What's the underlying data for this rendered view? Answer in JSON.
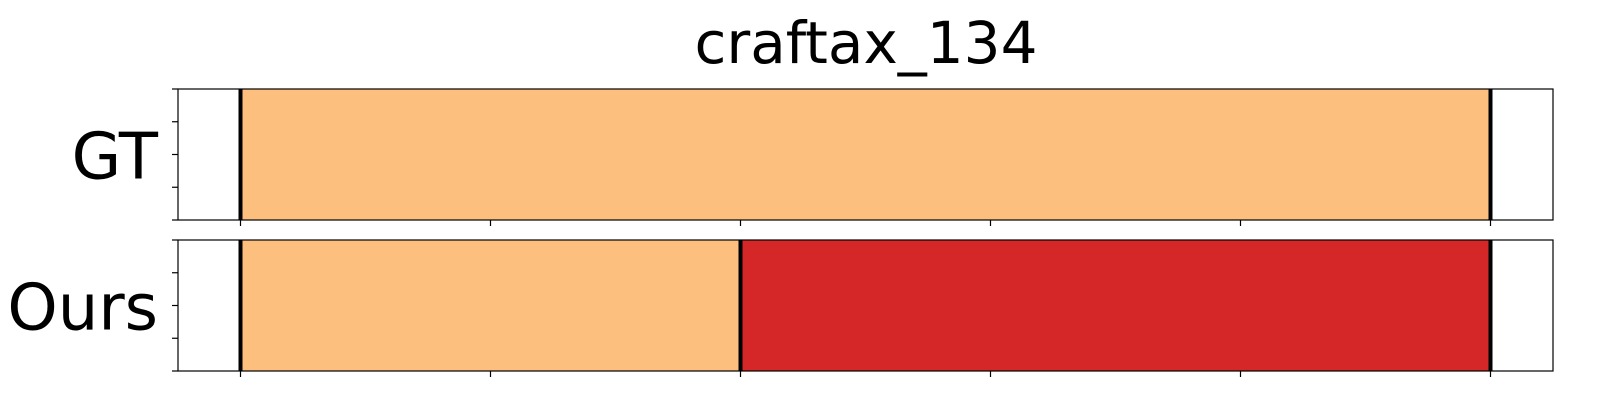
{
  "chart_data": {
    "type": "segmentation-timeline",
    "title": "craftax_134",
    "xlim": [
      -0.25,
      5.25
    ],
    "x_ticks": [
      0,
      1,
      2,
      3,
      4,
      5
    ],
    "y_ticks_per_row": 5,
    "colors": {
      "A": "#fdbf7e",
      "B": "#d62728"
    },
    "rows": [
      {
        "label": "GT",
        "segments": [
          {
            "start": 0,
            "end": 5,
            "class": "A"
          }
        ],
        "boundaries": [
          0,
          5
        ]
      },
      {
        "label": "Ours",
        "segments": [
          {
            "start": 0,
            "end": 2,
            "class": "A"
          },
          {
            "start": 2,
            "end": 5,
            "class": "B"
          }
        ],
        "boundaries": [
          0,
          2,
          5
        ]
      }
    ]
  }
}
